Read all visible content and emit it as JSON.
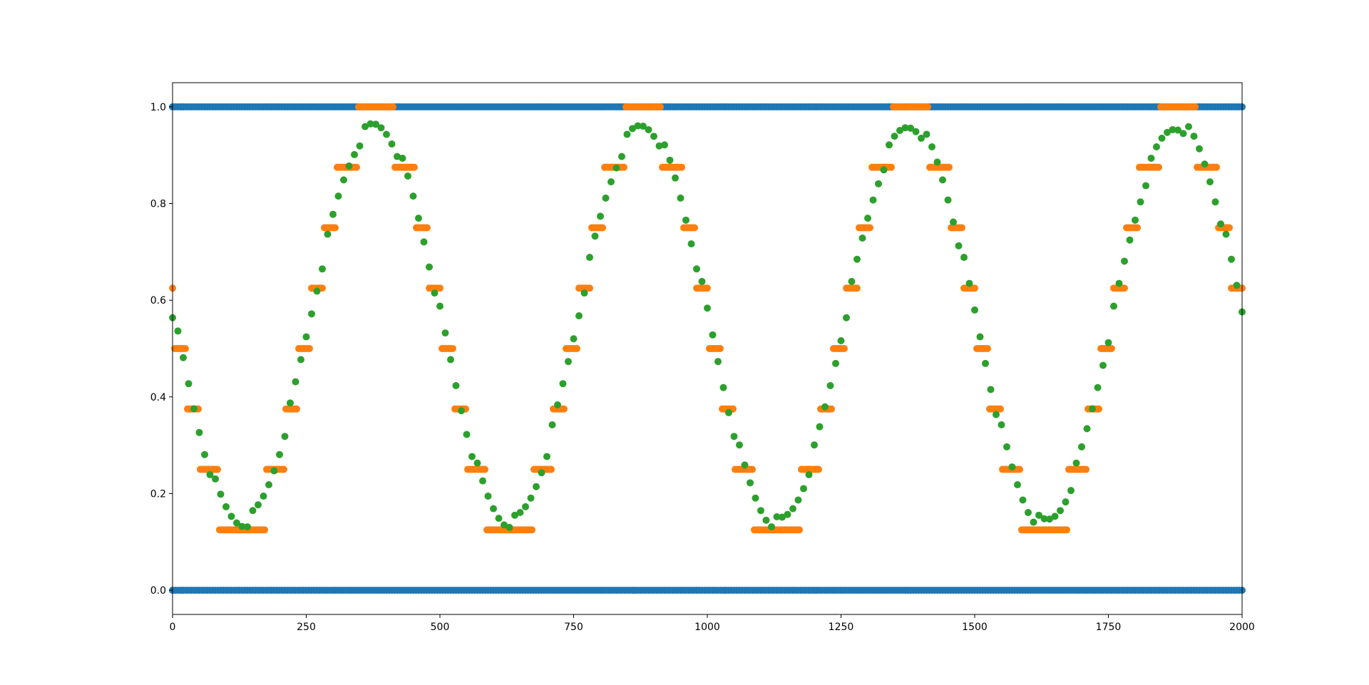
{
  "chart_data": {
    "type": "scatter",
    "title": "",
    "xlabel": "",
    "ylabel": "",
    "xlim": [
      0,
      2000
    ],
    "ylim": [
      -0.05,
      1.05
    ],
    "xticks": [
      0,
      250,
      500,
      750,
      1000,
      1250,
      1500,
      1750,
      2000
    ],
    "xtick_labels": [
      "0",
      "250",
      "500",
      "750",
      "1000",
      "1250",
      "1500",
      "1750",
      "2000"
    ],
    "yticks": [
      0.0,
      0.2,
      0.4,
      0.6,
      0.8,
      1.0
    ],
    "ytick_labels": [
      "0.0",
      "0.2",
      "0.4",
      "0.6",
      "0.8",
      "1.0"
    ],
    "grid": false,
    "legend": "none",
    "colors": {
      "series1": "#1f77b4",
      "series2": "#ff7f0e",
      "series3": "#2ca02c"
    },
    "series": [
      {
        "color": "#1f77b4",
        "x_start": 0,
        "x_end": 2000,
        "x_step": 5,
        "values_description_free": true,
        "levels": [
          0,
          1
        ]
      },
      {
        "color": "#ff7f0e",
        "x_start": 0,
        "x_end": 2000,
        "x_step": 5,
        "offset": 0.5,
        "amplitude": 0.5,
        "period": 500,
        "phase_start_value": 0.5625,
        "quantization_step": 0.125,
        "quantized": true
      },
      {
        "color": "#2ca02c",
        "x_start": 0,
        "x_end": 2000,
        "x_step": 5,
        "offset": 0.5625,
        "amplitude": 0.42,
        "period": 500,
        "start_value": 0.5625
      }
    ]
  }
}
